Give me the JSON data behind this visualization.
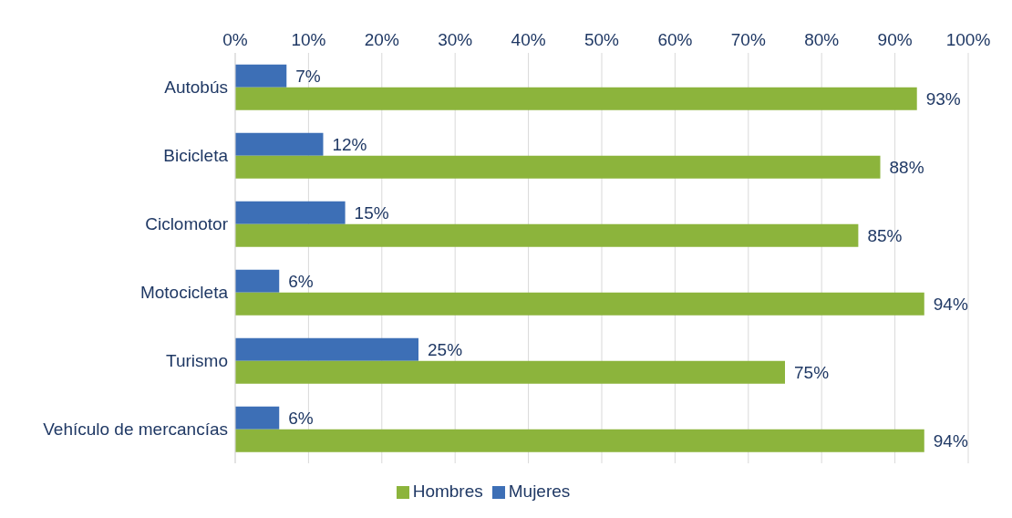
{
  "chart_data": {
    "type": "bar",
    "orientation": "horizontal",
    "categories": [
      "Autobús",
      "Bicicleta",
      "Ciclomotor",
      "Motocicleta",
      "Turismo",
      "Vehículo de mercancías"
    ],
    "series": [
      {
        "name": "Mujeres",
        "color": "#3d6fb6",
        "values": [
          7,
          12,
          15,
          6,
          25,
          6
        ],
        "value_labels": [
          "7%",
          "12%",
          "15%",
          "6%",
          "25%",
          "6%"
        ]
      },
      {
        "name": "Hombres",
        "color": "#8cb43c",
        "values": [
          93,
          88,
          85,
          94,
          75,
          94
        ],
        "value_labels": [
          "93%",
          "88%",
          "85%",
          "94%",
          "75%",
          "94%"
        ]
      }
    ],
    "xlim": [
      0,
      100
    ],
    "xticks": [
      {
        "value": 0,
        "label": "0%"
      },
      {
        "value": 10,
        "label": "10%"
      },
      {
        "value": 20,
        "label": "20%"
      },
      {
        "value": 30,
        "label": "30%"
      },
      {
        "value": 40,
        "label": "40%"
      },
      {
        "value": 50,
        "label": "50%"
      },
      {
        "value": 60,
        "label": "60%"
      },
      {
        "value": 70,
        "label": "70%"
      },
      {
        "value": 80,
        "label": "80%"
      },
      {
        "value": 90,
        "label": "90%"
      },
      {
        "value": 100,
        "label": "100%"
      }
    ],
    "grid": "x",
    "legend": "bottom"
  }
}
